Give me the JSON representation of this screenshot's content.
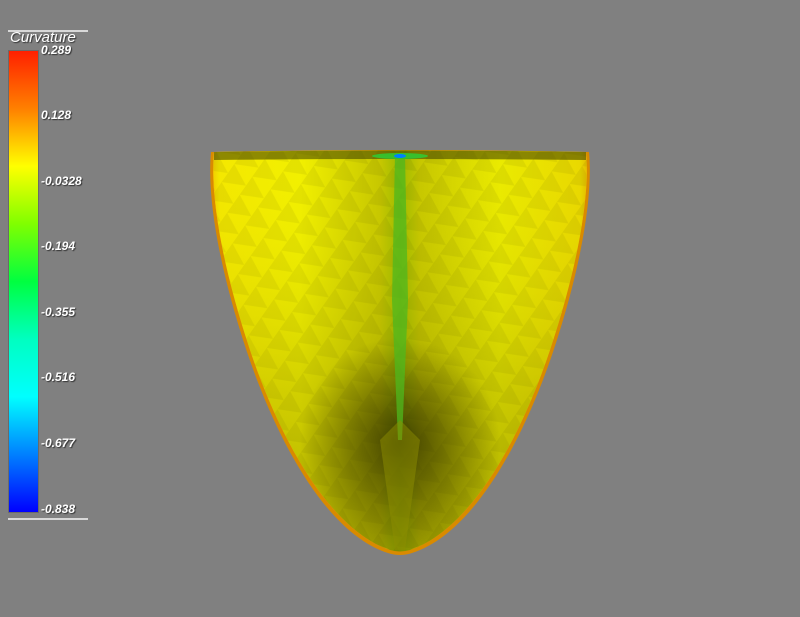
{
  "scalar_bar": {
    "title": "Curvature",
    "ticks": [
      "0.289",
      "0.128",
      "-0.0328",
      "-0.194",
      "-0.355",
      "-0.516",
      "-0.677",
      "-0.838"
    ],
    "colormap": [
      "#ff2000",
      "#ff8000",
      "#ffff00",
      "#80ff00",
      "#00ff40",
      "#00ffc0",
      "#00ffff",
      "#0080ff",
      "#0000ff"
    ]
  },
  "surface": {
    "base_color": "#e6e600",
    "edge_color": "#e38a00",
    "seam_color": "#55c21a"
  }
}
